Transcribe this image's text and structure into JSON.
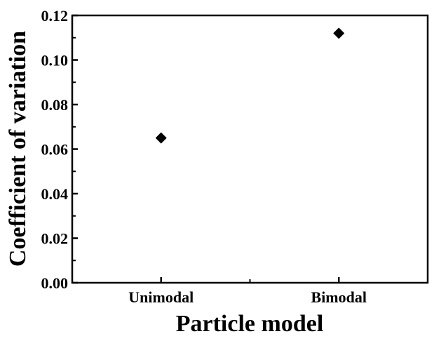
{
  "chart_data": {
    "type": "scatter",
    "title": "",
    "xlabel": "Particle model",
    "ylabel": "Coefficient of variation",
    "categories": [
      "Unimodal",
      "Bimodal"
    ],
    "values": [
      0.065,
      0.112
    ],
    "ylim": [
      0.0,
      0.12
    ],
    "yticks": [
      "0.00",
      "0.02",
      "0.04",
      "0.06",
      "0.08",
      "0.10",
      "0.12"
    ],
    "grid": false,
    "marker": "diamond",
    "marker_color": "#000000"
  }
}
